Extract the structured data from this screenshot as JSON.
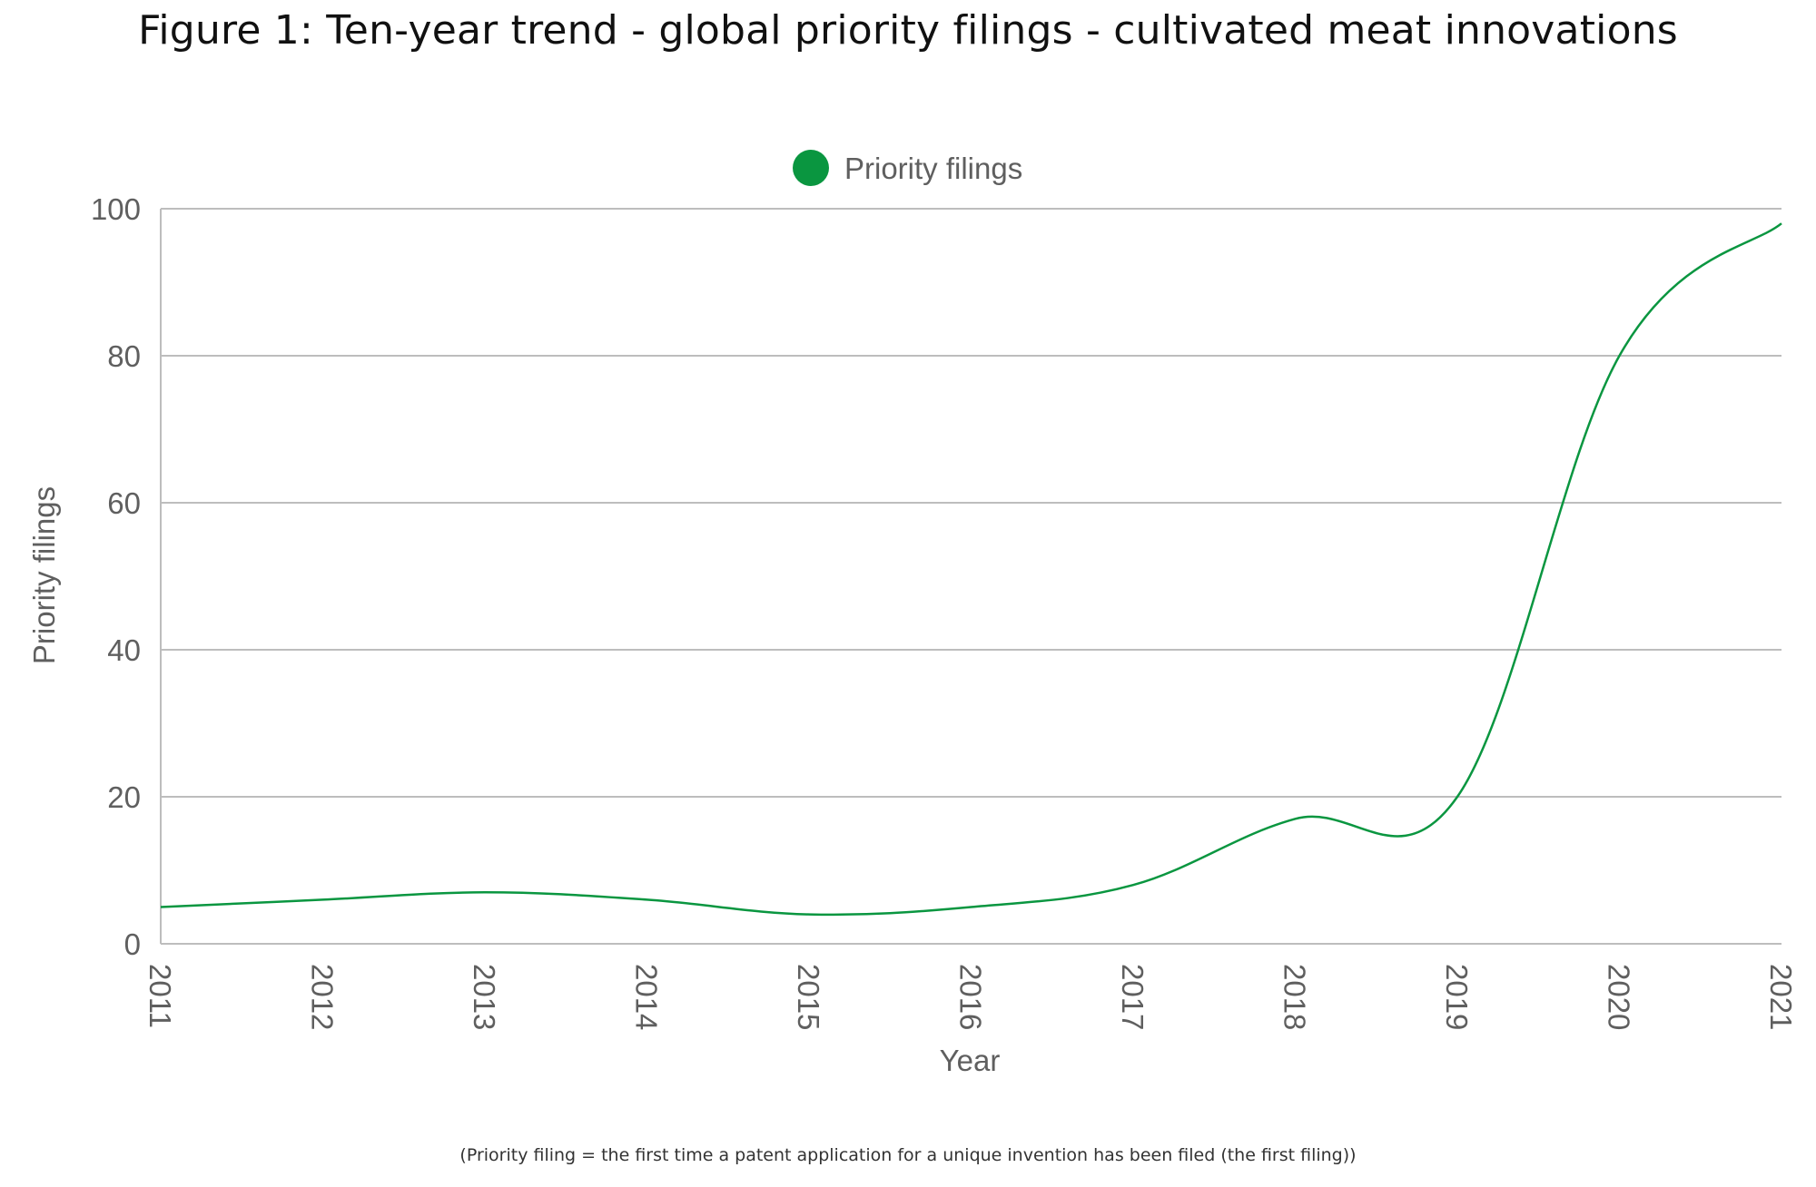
{
  "title": "Figure 1: Ten-year trend - global priority filings - cultivated meat innovations",
  "footnote": "(Priority filing = the first time a patent application for a unique invention has been filed (the first filing))",
  "colors": {
    "series": "#0a9640",
    "grid": "#bdbdbd",
    "text": "#5f5f5f"
  },
  "chart_data": {
    "type": "line",
    "title": "Figure 1: Ten-year trend - global priority filings - cultivated meat innovations",
    "xlabel": "Year",
    "ylabel": "Priority filings",
    "categories": [
      "2011",
      "2012",
      "2013",
      "2014",
      "2015",
      "2016",
      "2017",
      "2018",
      "2019",
      "2020",
      "2021"
    ],
    "series": [
      {
        "name": "Priority filings",
        "values": [
          5,
          6,
          7,
          6,
          4,
          5,
          8,
          17,
          20,
          80,
          98
        ]
      }
    ],
    "ylim": [
      0,
      100
    ],
    "yticks": [
      0,
      20,
      40,
      60,
      80,
      100
    ],
    "grid": true,
    "legend": "top-center"
  }
}
